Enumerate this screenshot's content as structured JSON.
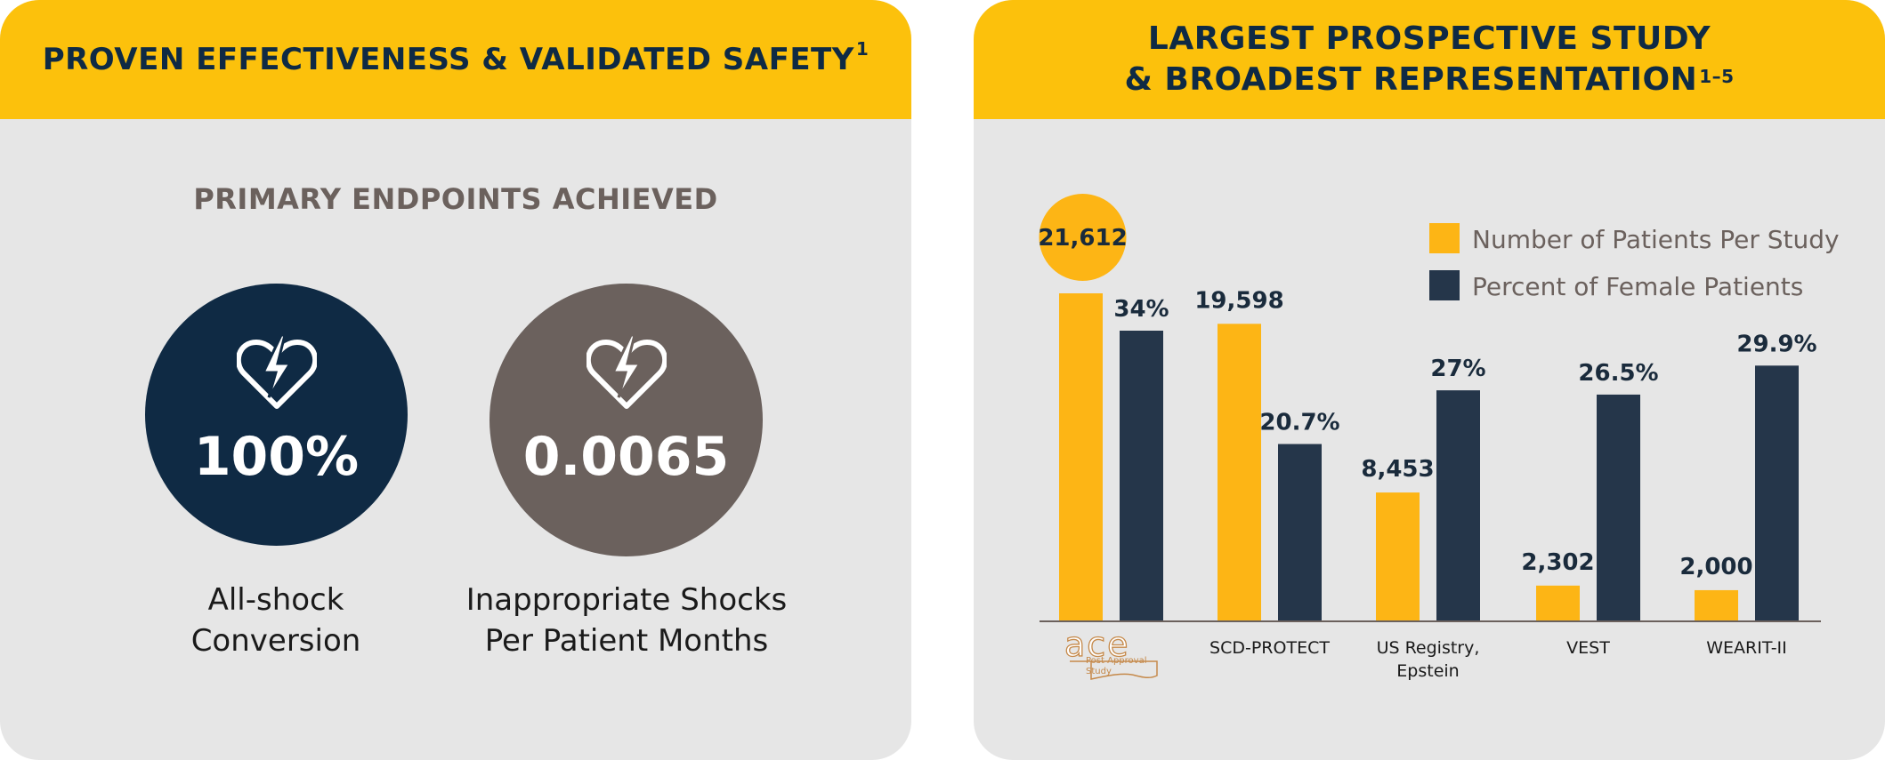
{
  "left_panel": {
    "title": "PROVEN EFFECTIVENESS & VALIDATED SAFETY",
    "title_ref": "1",
    "subheading": "PRIMARY ENDPOINTS ACHIEVED",
    "metrics": [
      {
        "value": "100%",
        "label_lines": [
          "All-shock",
          "Conversion"
        ],
        "color": "#0f2a44",
        "icon": "heart-lightning-icon"
      },
      {
        "value": "0.0065",
        "label_lines": [
          "Inappropriate Shocks",
          "Per Patient Months"
        ],
        "color": "#6b615d",
        "icon": "heart-lightning-icon"
      }
    ]
  },
  "right_panel": {
    "title_lines": [
      "LARGEST PROSPECTIVE STUDY",
      "& BROADEST REPRESENTATION"
    ],
    "title_ref": "1–5"
  },
  "chart_data": {
    "type": "bar",
    "categories": [
      "ace Post Approval Study",
      "SCD-PROTECT",
      "US Registry, Epstein",
      "VEST",
      "WEARIT-II"
    ],
    "category_label_lines": [
      [],
      [
        "SCD-PROTECT"
      ],
      [
        "US Registry,",
        "Epstein"
      ],
      [
        "VEST"
      ],
      [
        "WEARIT-II"
      ]
    ],
    "logo": {
      "main": "ace",
      "sub_lines": [
        "Post Approval",
        "Study"
      ]
    },
    "series": [
      {
        "name": "Number of Patients Per Study",
        "values": [
          21612,
          19598,
          8453,
          2302,
          2000
        ],
        "labels": [
          "21,612",
          "19,598",
          "8,453",
          "2,302",
          "2,000"
        ],
        "color": "#fdb515"
      },
      {
        "name": "Percent of Female Patients",
        "values": [
          34,
          20.7,
          27,
          26.5,
          29.9
        ],
        "labels": [
          "34%",
          "20.7%",
          "27%",
          "26.5%",
          "29.9%"
        ],
        "color": "#25364a"
      }
    ],
    "highlight_index": 0,
    "highlight_color": "#fdb515",
    "legend_position": "top-right",
    "grid": false
  }
}
